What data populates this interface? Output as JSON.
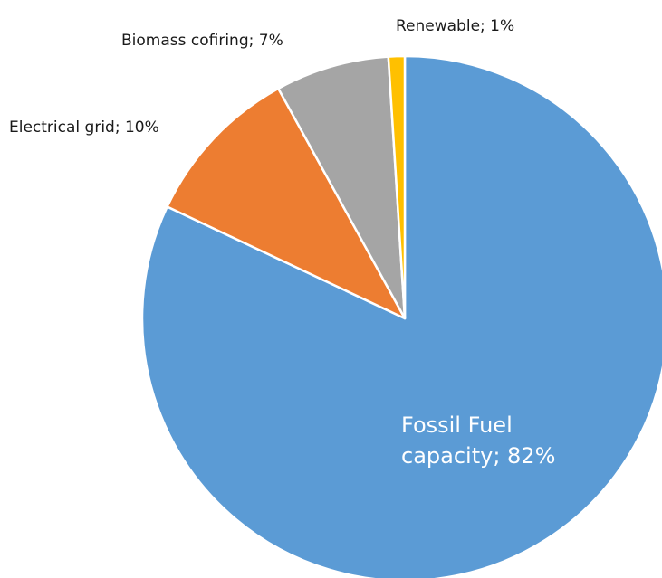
{
  "chart_data": {
    "type": "pie",
    "title": "",
    "start_angle_deg": 0,
    "direction": "clockwise",
    "slices": [
      {
        "name": "Fossil Fuel capacity",
        "value": 82,
        "color": "#5b9bd5",
        "label_lines": [
          "Fossil Fuel",
          "capacity; 82%"
        ],
        "label_placement": "inside",
        "label_color": "#ffffff"
      },
      {
        "name": "Electrical grid",
        "value": 10,
        "color": "#ed7d31",
        "label_lines": [
          "Electrical grid; 10%"
        ],
        "label_placement": "outside",
        "label_color": "#1a1a1a"
      },
      {
        "name": "Biomass cofiring",
        "value": 7,
        "color": "#a5a5a5",
        "label_lines": [
          "Biomass cofiring; 7%"
        ],
        "label_placement": "outside",
        "label_color": "#1a1a1a"
      },
      {
        "name": "Renewable",
        "value": 1,
        "color": "#ffc000",
        "label_lines": [
          "Renewable; 1%"
        ],
        "label_placement": "outside",
        "label_color": "#1a1a1a"
      }
    ]
  }
}
